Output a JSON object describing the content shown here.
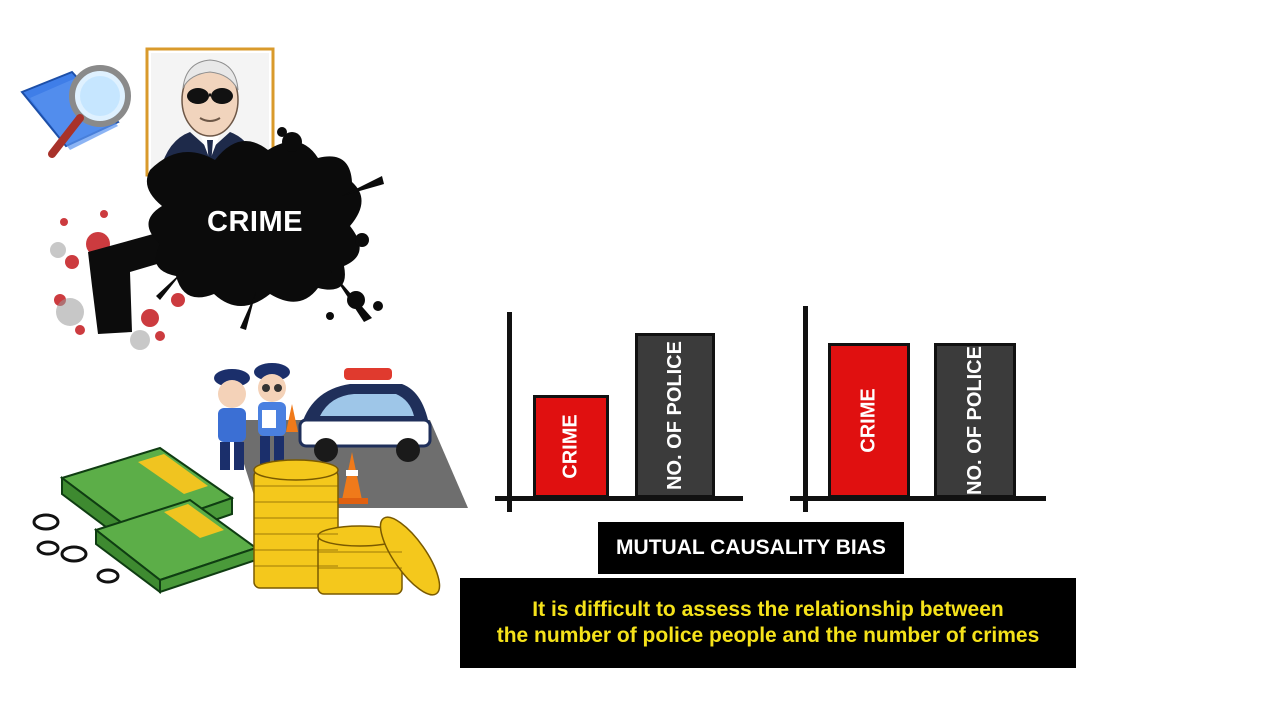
{
  "colors": {
    "background": "#ffffff",
    "crime_bar": "#e01010",
    "police_bar": "#3b3b3b",
    "caption_text": "#f5e21a",
    "box_background": "#000000"
  },
  "illustrations": {
    "splat_text": "CRIME",
    "icons": [
      "magnifier-folder-icon",
      "portrait-frame",
      "gun-icon",
      "police-officers",
      "police-car-icon",
      "money-stack-icon",
      "coin-stack-icon"
    ]
  },
  "chart_data": [
    {
      "type": "bar",
      "categories": [
        "CRIME",
        "NO. OF POLICE"
      ],
      "values": [
        0.5,
        0.8
      ],
      "ylim": [
        0,
        1
      ],
      "grid": false
    },
    {
      "type": "bar",
      "categories": [
        "CRIME",
        "NO. OF POLICE"
      ],
      "values": [
        0.75,
        0.75
      ],
      "ylim": [
        0,
        1
      ],
      "grid": false
    }
  ],
  "bias_label": "MUTUAL CAUSALITY BIAS",
  "caption": {
    "line1": "It is difficult to assess the relationship between",
    "line2": "the number of police people and the number of crimes"
  }
}
